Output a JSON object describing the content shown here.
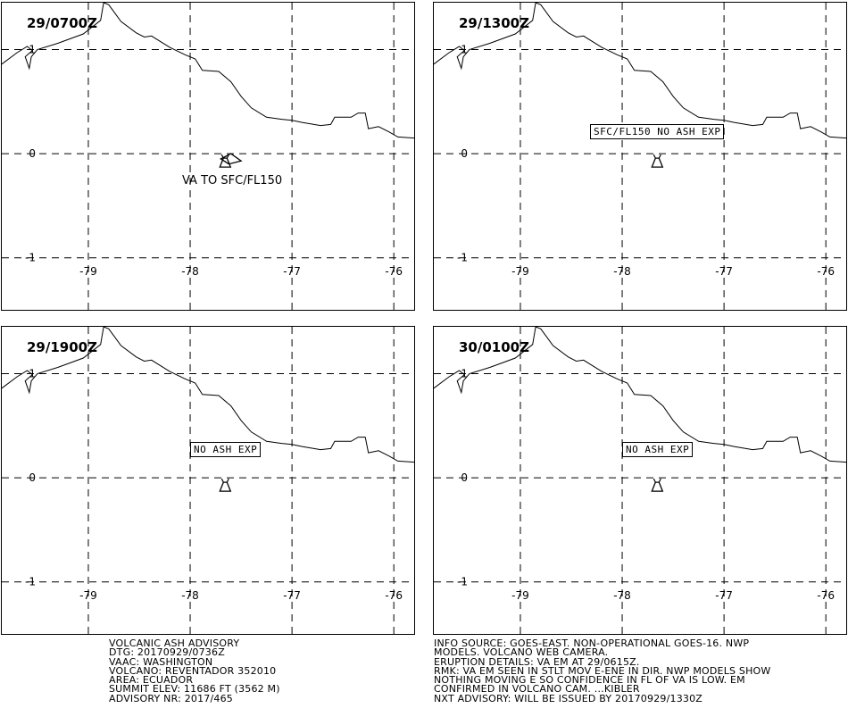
{
  "panels": [
    {
      "dtg": "29/0700Z",
      "label": "VA TO SFC/FL150",
      "label_boxed": false,
      "ash_polygon": [
        [
          -77.7,
          -0.05
        ],
        [
          -77.6,
          0.0
        ],
        [
          -77.5,
          -0.07
        ],
        [
          -77.62,
          -0.1
        ]
      ]
    },
    {
      "dtg": "29/1300Z",
      "label": "SFC/FL150 NO ASH EXP",
      "label_boxed": true,
      "ash_polygon": null
    },
    {
      "dtg": "29/1900Z",
      "label": "NO ASH EXP",
      "label_boxed": true,
      "ash_polygon": null
    },
    {
      "dtg": "30/0100Z",
      "label": "NO ASH EXP",
      "label_boxed": true,
      "ash_polygon": null
    }
  ],
  "map": {
    "lon_ticks": [
      "-79",
      "-78",
      "-77",
      "-76"
    ],
    "lat_ticks": [
      "1",
      "0",
      "-1"
    ],
    "lon_range": [
      -79.85,
      -75.8
    ],
    "lat_range": [
      -1.5,
      1.45
    ],
    "volcano": {
      "name": "REVENTADOR",
      "lon": -77.656,
      "lat": -0.077,
      "symbol": "volcano-icon"
    },
    "border": [
      [
        -79.85,
        0.86
      ],
      [
        -79.7,
        0.97
      ],
      [
        -79.6,
        1.03
      ],
      [
        -79.55,
        0.99
      ],
      [
        -79.62,
        0.93
      ],
      [
        -79.58,
        0.82
      ],
      [
        -79.56,
        0.93
      ],
      [
        -79.5,
        1.0
      ],
      [
        -79.3,
        1.06
      ],
      [
        -79.05,
        1.15
      ],
      [
        -78.88,
        1.28
      ],
      [
        -78.85,
        1.45
      ],
      [
        -78.8,
        1.43
      ],
      [
        -78.68,
        1.27
      ],
      [
        -78.53,
        1.16
      ],
      [
        -78.45,
        1.12
      ],
      [
        -78.38,
        1.13
      ],
      [
        -78.2,
        1.02
      ],
      [
        -78.05,
        0.95
      ],
      [
        -77.95,
        0.91
      ],
      [
        -77.88,
        0.8
      ],
      [
        -77.72,
        0.79
      ],
      [
        -77.6,
        0.69
      ],
      [
        -77.5,
        0.55
      ],
      [
        -77.4,
        0.44
      ],
      [
        -77.25,
        0.35
      ],
      [
        -77.1,
        0.33
      ],
      [
        -77.0,
        0.32
      ],
      [
        -76.9,
        0.3
      ],
      [
        -76.72,
        0.27
      ],
      [
        -76.62,
        0.28
      ],
      [
        -76.58,
        0.35
      ],
      [
        -76.42,
        0.35
      ],
      [
        -76.35,
        0.39
      ],
      [
        -76.28,
        0.39
      ],
      [
        -76.25,
        0.24
      ],
      [
        -76.15,
        0.26
      ],
      [
        -76.05,
        0.21
      ],
      [
        -75.96,
        0.16
      ],
      [
        -75.8,
        0.15
      ]
    ]
  },
  "advisory_left": [
    "VOLCANIC ASH ADVISORY",
    "DTG: 20170929/0736Z",
    "VAAC: WASHINGTON",
    "VOLCANO: REVENTADOR 352010",
    "AREA: ECUADOR",
    "SUMMIT ELEV: 11686 FT (3562 M)",
    "ADVISORY NR: 2017/465"
  ],
  "advisory_right": [
    "INFO SOURCE: GOES-EAST. NON-OPERATIONAL GOES-16. NWP",
    "MODELS. VOLCANO WEB CAMERA.",
    "ERUPTION DETAILS: VA EM AT 29/0615Z.",
    "RMK: VA EM SEEN IN STLT MOV E-ENE IN DIR. NWP MODELS SHOW",
    "NOTHING MOVING E SO CONFIDENCE IN FL OF VA IS LOW. EM",
    "CONFIRMED IN VOLCANO CAM. ...KIBLER",
    "NXT ADVISORY: WILL BE ISSUED BY 20170929/1330Z"
  ]
}
